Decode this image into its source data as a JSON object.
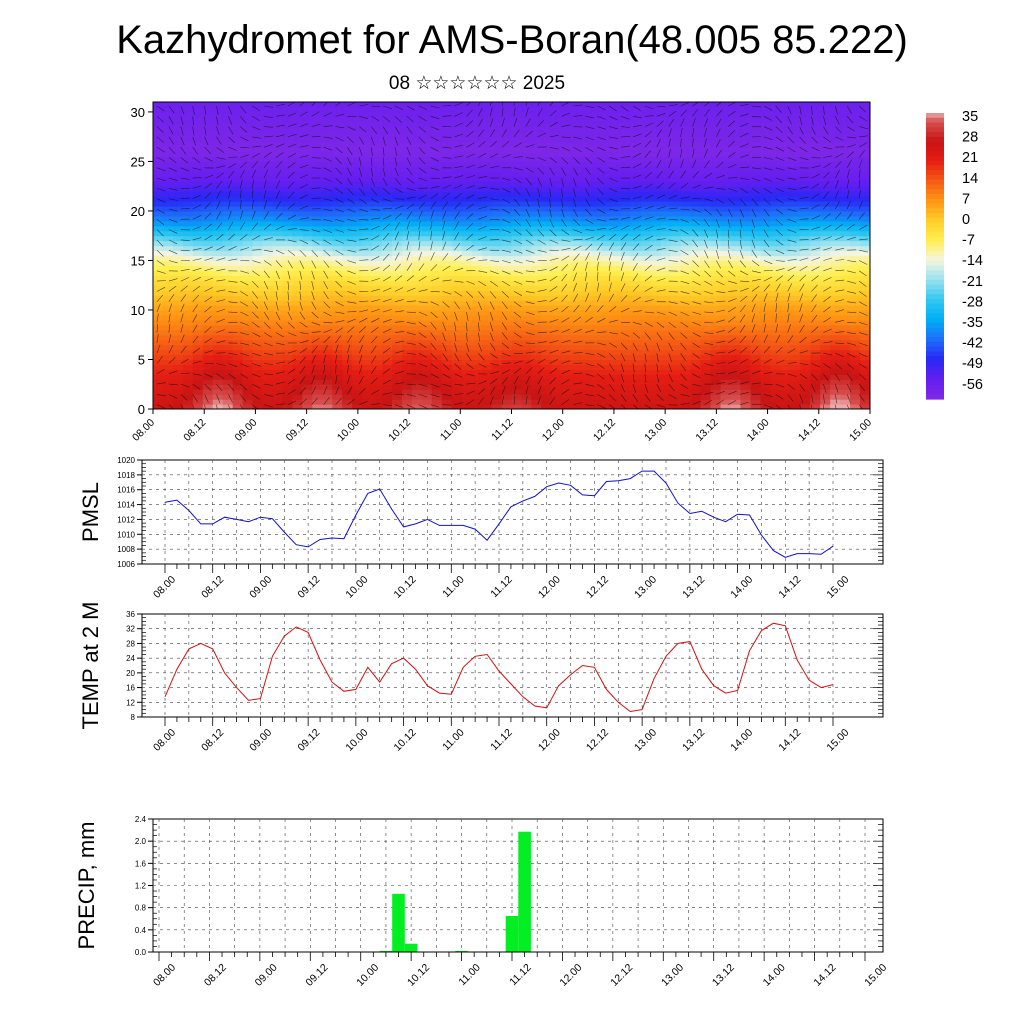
{
  "header": {
    "title": "Kazhydromet for AMS-Boran(48.005 85.222)",
    "subtitle": "08 ☆☆☆☆☆☆ 2025"
  },
  "chart_data": [
    {
      "type": "heatmap",
      "title": "",
      "xlabel": "",
      "ylabel": "",
      "x_tick_labels": [
        "08.00",
        "08.12",
        "09.00",
        "09.12",
        "10.00",
        "10.12",
        "11.00",
        "11.12",
        "12.00",
        "12.12",
        "13.00",
        "13.12",
        "14.00",
        "14.12",
        "15.00"
      ],
      "y_ticks": [
        0,
        5,
        10,
        15,
        20,
        25,
        30
      ],
      "ylim": [
        0,
        31
      ],
      "colorbar": {
        "labels": [
          "35",
          "28",
          "21",
          "14",
          "7",
          "0",
          "-7",
          "-14",
          "-21",
          "-28",
          "-35",
          "-42",
          "-49",
          "-56"
        ],
        "range": [
          -63,
          38
        ]
      },
      "description_overlay": "wind vectors",
      "layer_profile": [
        {
          "level": 0,
          "value": 27
        },
        {
          "level": 3,
          "value": 22
        },
        {
          "level": 6,
          "value": 15
        },
        {
          "level": 10,
          "value": 6
        },
        {
          "level": 13,
          "value": -4
        },
        {
          "level": 15,
          "value": -12
        },
        {
          "level": 17,
          "value": -24
        },
        {
          "level": 19,
          "value": -38
        },
        {
          "level": 21,
          "value": -48
        },
        {
          "level": 23,
          "value": -56
        },
        {
          "level": 26,
          "value": -62
        },
        {
          "level": 31,
          "value": -58
        }
      ],
      "warm_cores": [
        {
          "x": 1.3,
          "value": 36
        },
        {
          "x": 3.3,
          "value": 34
        },
        {
          "x": 5.2,
          "value": 33
        },
        {
          "x": 7.1,
          "value": 30
        },
        {
          "x": 11.3,
          "value": 35
        },
        {
          "x": 13.4,
          "value": 37
        }
      ]
    },
    {
      "type": "line",
      "ylabel": "PMSL",
      "ylim": [
        1006,
        1020
      ],
      "y_ticks": [
        1006,
        1008,
        1010,
        1012,
        1014,
        1016,
        1018,
        1020
      ],
      "x_tick_labels": [
        "08.00",
        "08.12",
        "09.00",
        "09.12",
        "10.00",
        "10.12",
        "11.00",
        "11.12",
        "12.00",
        "12.12",
        "13.00",
        "13.12",
        "14.00",
        "14.12",
        "15.00"
      ],
      "series": [
        {
          "color": "#1010d0",
          "values": [
            1014.3,
            1014.6,
            1013.2,
            1011.4,
            1011.4,
            1012.3,
            1012.0,
            1011.7,
            1012.3,
            1012.1,
            1010.3,
            1008.6,
            1008.3,
            1009.3,
            1009.5,
            1009.4,
            1012.6,
            1015.5,
            1016.1,
            1013.4,
            1011.0,
            1011.4,
            1012.0,
            1011.2,
            1011.2,
            1011.2,
            1010.7,
            1009.2,
            1011.4,
            1013.7,
            1014.5,
            1015.1,
            1016.4,
            1016.9,
            1016.6,
            1015.3,
            1015.2,
            1017.1,
            1017.2,
            1017.5,
            1018.5,
            1018.5,
            1016.9,
            1014.2,
            1012.8,
            1013.1,
            1012.3,
            1011.7,
            1012.7,
            1012.6,
            1009.9,
            1007.8,
            1006.9,
            1007.4,
            1007.4,
            1007.3,
            1008.4
          ]
        }
      ]
    },
    {
      "type": "line",
      "ylabel": "TEMP at 2 M",
      "ylim": [
        8,
        36
      ],
      "y_ticks": [
        8,
        12,
        16,
        20,
        24,
        28,
        32,
        36
      ],
      "x_tick_labels": [
        "08.00",
        "08.12",
        "09.00",
        "09.12",
        "10.00",
        "10.12",
        "11.00",
        "11.12",
        "12.00",
        "12.12",
        "13.00",
        "13.12",
        "14.00",
        "14.12",
        "15.00"
      ],
      "series": [
        {
          "color": "#d01010",
          "values": [
            13.5,
            21.0,
            26.5,
            28.0,
            26.5,
            20.0,
            16.0,
            12.5,
            13.0,
            24.5,
            30.0,
            32.5,
            31.0,
            23.5,
            17.5,
            15.0,
            15.5,
            21.5,
            17.5,
            22.5,
            24.0,
            21.0,
            16.5,
            14.5,
            14.2,
            21.5,
            24.5,
            25.0,
            20.5,
            17.0,
            13.5,
            11.0,
            10.5,
            16.5,
            19.5,
            22.0,
            21.5,
            15.5,
            12.0,
            9.5,
            10.0,
            18.5,
            24.5,
            28.0,
            28.5,
            21.0,
            16.5,
            14.5,
            15.2,
            26.0,
            31.5,
            33.5,
            32.8,
            23.5,
            18.0,
            16.0,
            16.8
          ]
        }
      ]
    },
    {
      "type": "bar",
      "ylabel": "PRECIP, mm",
      "ylim": [
        0,
        2.4
      ],
      "y_ticks": [
        "0.0",
        "0.4",
        "0.8",
        "1.2",
        "1.6",
        "2.0",
        "2.4"
      ],
      "x_tick_labels": [
        "08.00",
        "08.12",
        "09.00",
        "09.12",
        "10.00",
        "10.12",
        "11.00",
        "11.12",
        "12.00",
        "12.12",
        "13.00",
        "13.12",
        "14.00",
        "14.12",
        "15.00"
      ],
      "color": "#00ee22",
      "bars": [
        {
          "step": 18,
          "value": 0.02
        },
        {
          "step": 19,
          "value": 1.05
        },
        {
          "step": 20,
          "value": 0.15
        },
        {
          "step": 24,
          "value": 0.02
        },
        {
          "step": 28,
          "value": 0.65
        },
        {
          "step": 29,
          "value": 2.17
        }
      ]
    }
  ]
}
